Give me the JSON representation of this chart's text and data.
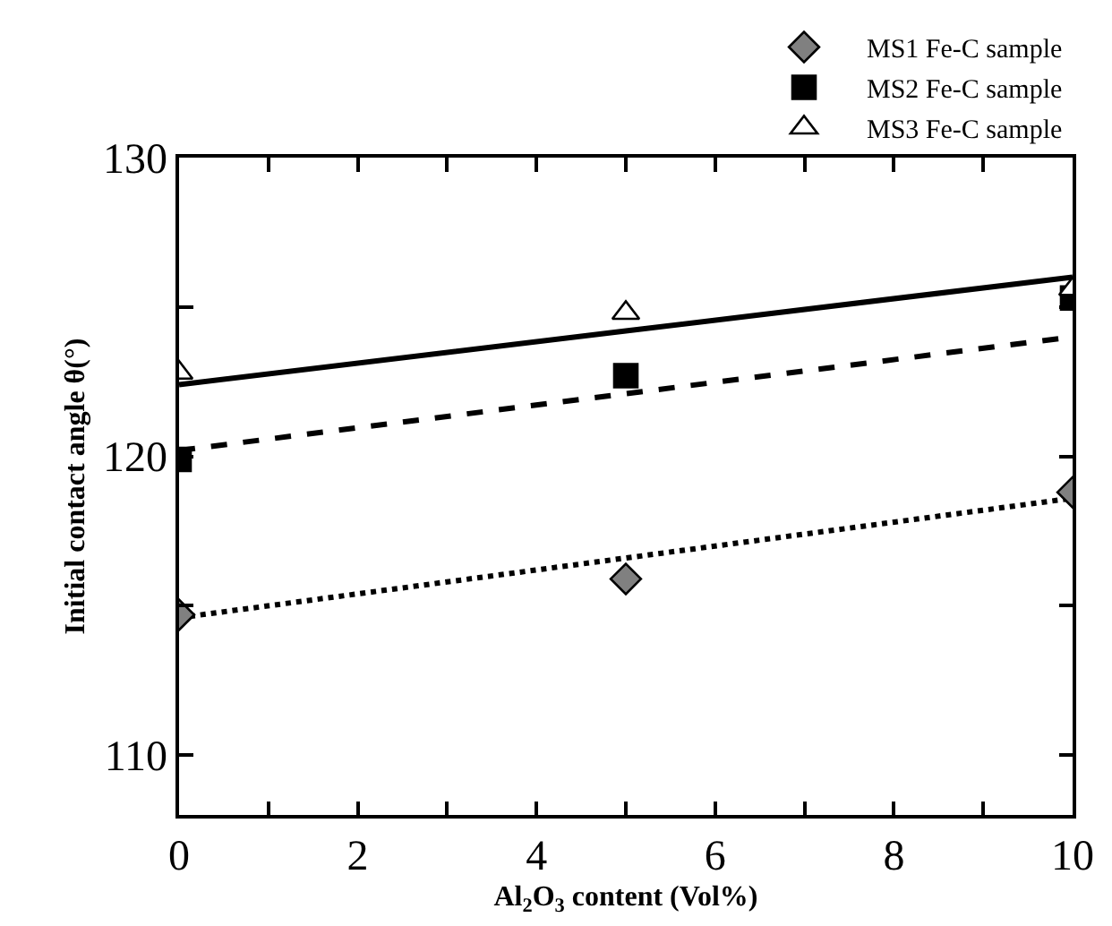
{
  "chart_data": {
    "type": "scatter",
    "xlabel": "Al$_{2}$O$_{3}$ content (Vol%)",
    "ylabel": "Initial contact angle θ(°)",
    "x": [
      0,
      5,
      10
    ],
    "series": [
      {
        "name": "MS1 Fe-C sample",
        "marker": "diamond",
        "color": "#808080",
        "values": [
          114.7,
          115.9,
          118.8
        ]
      },
      {
        "name": "MS2 Fe-C sample",
        "marker": "square",
        "color": "#000000",
        "values": [
          119.9,
          122.7,
          125.3
        ]
      },
      {
        "name": "MS3 Fe-C sample",
        "marker": "triangle",
        "color": "#ffffff",
        "values": [
          122.8,
          124.8,
          125.6
        ]
      },
      {
        "type": "line",
        "line_style": "dotted",
        "color": "#000000",
        "values": [
          114.6,
          116.6,
          118.6
        ]
      },
      {
        "type": "line",
        "line_style": "dashed",
        "color": "#000000",
        "values": [
          120.2,
          122.1,
          124.0
        ]
      },
      {
        "type": "line",
        "line_style": "solid",
        "color": "#000000",
        "values": [
          122.4,
          124.2,
          126.0
        ]
      }
    ],
    "xlim": [
      0,
      10
    ],
    "xticks": [
      0,
      {
        "value": 1,
        "label": null
      },
      2,
      {
        "value": 3,
        "label": null
      },
      4,
      {
        "value": 5,
        "label": null
      },
      6,
      {
        "value": 7,
        "label": null
      },
      8,
      {
        "value": 9,
        "label": null
      },
      10
    ],
    "ylim": [
      108,
      130
    ],
    "yticks": [
      110,
      {
        "value": 115,
        "label": null
      },
      120,
      {
        "value": 125,
        "label": null
      },
      130
    ],
    "grid": false,
    "legend": "top right"
  }
}
